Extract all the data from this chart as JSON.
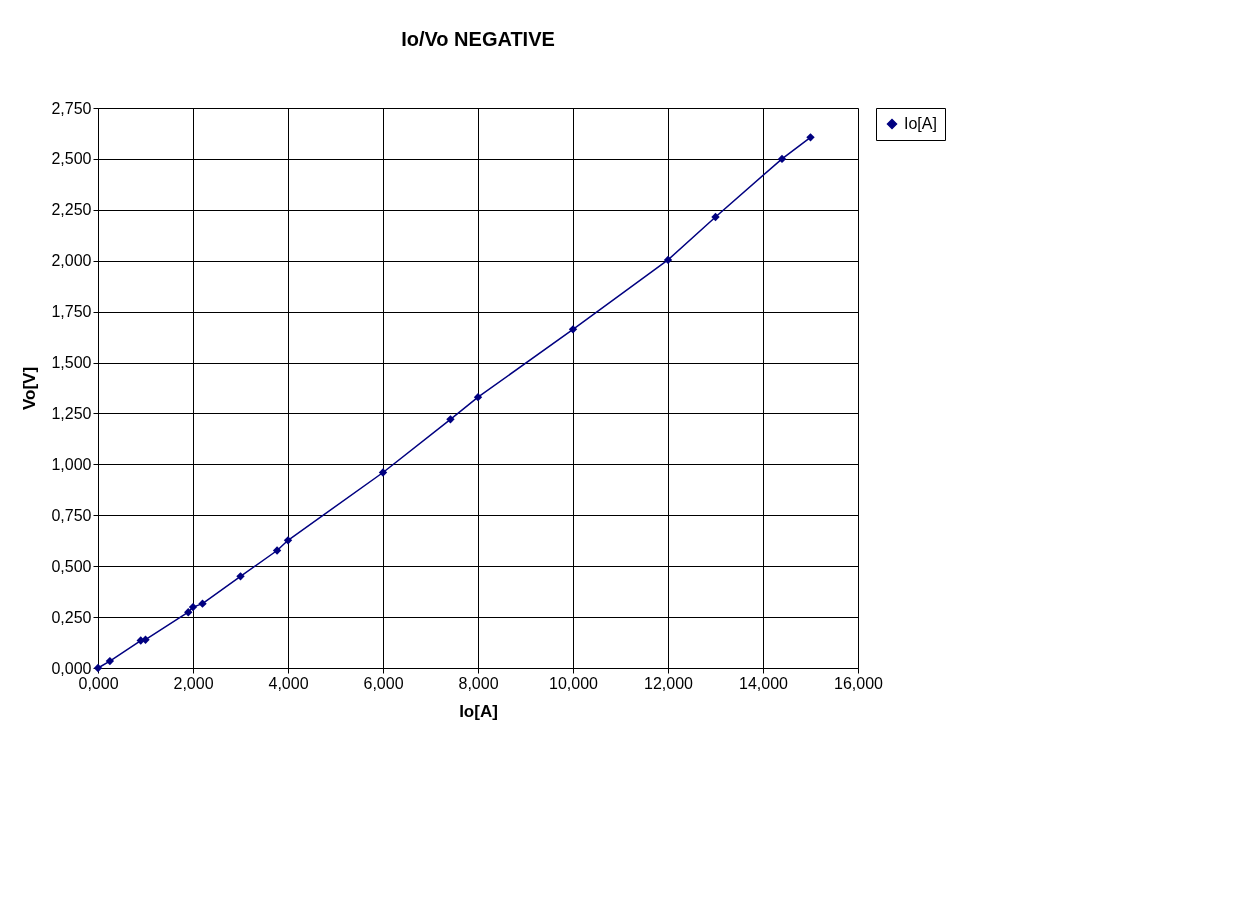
{
  "chart_data": {
    "type": "line",
    "title": "Io/Vo NEGATIVE",
    "xlabel": "Io[A]",
    "ylabel": "Vo[V]",
    "x": [
      0,
      0.25,
      0.9,
      1.0,
      1.9,
      2.0,
      2.2,
      3.0,
      3.77,
      4.0,
      6.0,
      7.42,
      8.0,
      10.0,
      12.0,
      13.0,
      14.4,
      15.0
    ],
    "series": [
      {
        "name": "Io[A]",
        "color": "#000080",
        "values": [
          0,
          0.034,
          0.135,
          0.139,
          0.274,
          0.299,
          0.316,
          0.45,
          0.577,
          0.627,
          0.96,
          1.221,
          1.33,
          1.663,
          2.004,
          2.215,
          2.5,
          2.606
        ]
      }
    ],
    "xlim": [
      0,
      16
    ],
    "ylim": [
      0,
      2.75
    ],
    "xticks": [
      {
        "value": 0,
        "label": "0,000"
      },
      {
        "value": 2,
        "label": "2,000"
      },
      {
        "value": 4,
        "label": "4,000"
      },
      {
        "value": 6,
        "label": "6,000"
      },
      {
        "value": 8,
        "label": "8,000"
      },
      {
        "value": 10,
        "label": "10,000"
      },
      {
        "value": 12,
        "label": "12,000"
      },
      {
        "value": 14,
        "label": "14,000"
      },
      {
        "value": 16,
        "label": "16,000"
      }
    ],
    "yticks": [
      {
        "value": 0,
        "label": "0,000"
      },
      {
        "value": 0.25,
        "label": "0,250"
      },
      {
        "value": 0.5,
        "label": "0,500"
      },
      {
        "value": 0.75,
        "label": "0,750"
      },
      {
        "value": 1.0,
        "label": "1,000"
      },
      {
        "value": 1.25,
        "label": "1,250"
      },
      {
        "value": 1.5,
        "label": "1,500"
      },
      {
        "value": 1.75,
        "label": "1,750"
      },
      {
        "value": 2.0,
        "label": "2,000"
      },
      {
        "value": 2.25,
        "label": "2,250"
      },
      {
        "value": 2.5,
        "label": "2,500"
      },
      {
        "value": 2.75,
        "label": "2,750"
      }
    ],
    "grid": true,
    "legend": "right",
    "marker": "diamond",
    "line_style": "solid"
  }
}
